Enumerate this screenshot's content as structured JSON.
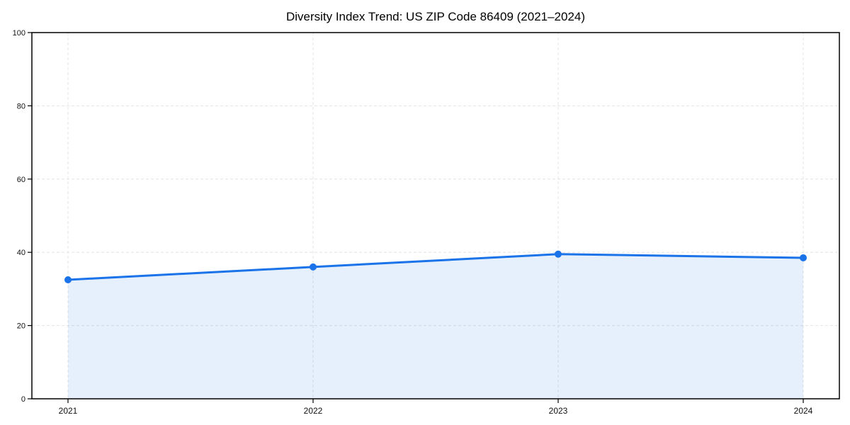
{
  "chart_data": {
    "type": "area",
    "title": "Diversity Index Trend: US ZIP Code 86409 (2021–2024)",
    "categories": [
      "2021",
      "2022",
      "2023",
      "2024"
    ],
    "series": [
      {
        "name": "Diversity Index",
        "values": [
          32.5,
          36,
          39.5,
          38.5
        ]
      }
    ],
    "xlabel": "",
    "ylabel": "",
    "ylim": [
      0,
      100
    ],
    "yticks": [
      0,
      20,
      40,
      60,
      80,
      100
    ],
    "grid": "dashed",
    "legend": "none",
    "marker": "circle",
    "colors": {
      "line": "#1a73e8",
      "marker": "#1a73e8",
      "fill": "rgba(26,115,232,0.11)",
      "grid": "#e4e4e4",
      "axis": "#000000",
      "tick_text": "#111111",
      "background": "#ffffff"
    }
  }
}
